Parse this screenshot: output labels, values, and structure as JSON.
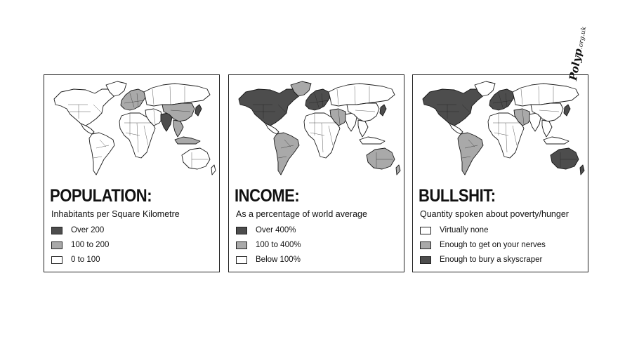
{
  "palette": {
    "dark": "#4d4d4d",
    "medium": "#a9a9a9",
    "light": "#ffffff",
    "stroke": "#1a1a1a"
  },
  "panels": [
    {
      "id": "population",
      "title": "POPULATION:",
      "subtitle": "Inhabitants per Square Kilometre",
      "legend": [
        {
          "label": "Over 200",
          "shade": "dark"
        },
        {
          "label": "100 to 200",
          "shade": "medium"
        },
        {
          "label": "0 to 100",
          "shade": "light"
        }
      ],
      "regions": {
        "north_america": "light",
        "greenland": "light",
        "central_america": "light",
        "south_america": "light",
        "africa": "light",
        "europe": "medium",
        "russia": "light",
        "middle_east": "light",
        "india": "dark",
        "china": "medium",
        "southeast_asia": "medium",
        "japan": "dark",
        "indonesia": "medium",
        "australia": "light",
        "new_zealand": "light"
      }
    },
    {
      "id": "income",
      "title": "INCOME:",
      "subtitle": "As a percentage of world average",
      "legend": [
        {
          "label": "Over 400%",
          "shade": "dark"
        },
        {
          "label": "100 to 400%",
          "shade": "medium"
        },
        {
          "label": "Below 100%",
          "shade": "light"
        }
      ],
      "regions": {
        "north_america": "dark",
        "greenland": "medium",
        "central_america": "light",
        "south_america": "medium",
        "africa": "light",
        "europe": "dark",
        "russia": "light",
        "middle_east": "medium",
        "india": "light",
        "china": "light",
        "southeast_asia": "light",
        "japan": "dark",
        "indonesia": "light",
        "australia": "medium",
        "new_zealand": "medium"
      }
    },
    {
      "id": "bullshit",
      "title": "BULLSHIT:",
      "subtitle": "Quantity spoken about poverty/hunger",
      "legend": [
        {
          "label": "Virtually none",
          "shade": "light"
        },
        {
          "label": "Enough to get on your nerves",
          "shade": "medium"
        },
        {
          "label": "Enough to bury a skyscraper",
          "shade": "dark"
        }
      ],
      "regions": {
        "north_america": "dark",
        "greenland": "light",
        "central_america": "light",
        "south_america": "medium",
        "africa": "light",
        "europe": "dark",
        "russia": "light",
        "middle_east": "medium",
        "india": "light",
        "china": "light",
        "southeast_asia": "light",
        "japan": "dark",
        "indonesia": "light",
        "australia": "dark",
        "new_zealand": "dark"
      },
      "signature": {
        "name": "Polyp",
        "domain": ".org.uk"
      }
    }
  ]
}
